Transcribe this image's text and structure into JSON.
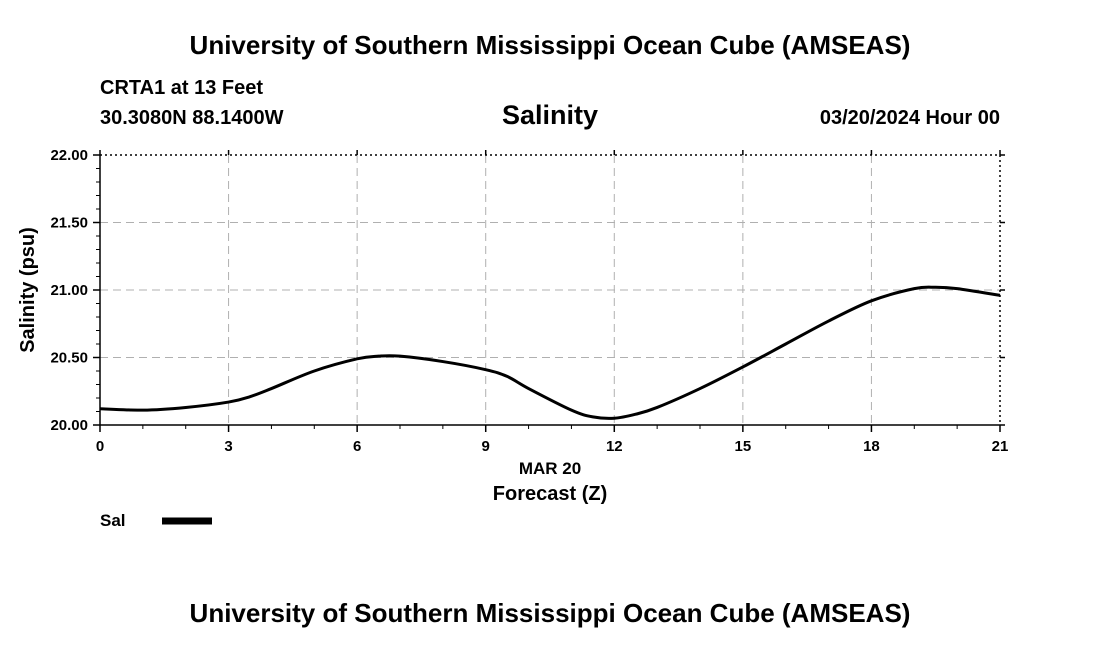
{
  "header": {
    "title": "University of Southern Mississippi Ocean Cube (AMSEAS)",
    "station": "CRTA1 at 13 Feet",
    "coords": "30.3080N  88.1400W",
    "chart_title": "Salinity",
    "date": "03/20/2024 Hour 00"
  },
  "footer": {
    "title": "University of Southern Mississippi Ocean Cube (AMSEAS)"
  },
  "colors": {
    "line": "#000000",
    "grid": "#b0b0b0",
    "background": "#ffffff"
  },
  "chart_data": {
    "type": "line",
    "title": "Salinity",
    "xlabel": "Forecast (Z)",
    "xsublabel": "MAR 20",
    "ylabel": "Salinity (psu)",
    "xlim": [
      0,
      21
    ],
    "ylim": [
      20.0,
      22.0
    ],
    "xticks": [
      0,
      3,
      6,
      9,
      12,
      15,
      18,
      21
    ],
    "yticks": [
      "20.00",
      "20.50",
      "21.00",
      "21.50",
      "22.00"
    ],
    "grid": true,
    "legend": {
      "position": "bottom-left",
      "label": "Sal"
    },
    "series": [
      {
        "name": "Sal",
        "x": [
          0,
          1,
          2,
          3,
          3.5,
          4,
          5,
          6,
          6.5,
          7,
          8,
          9,
          9.5,
          10,
          11,
          11.5,
          12,
          12.5,
          13,
          14,
          15,
          16,
          17,
          18,
          19,
          19.5,
          20,
          21
        ],
        "values": [
          20.12,
          20.11,
          20.13,
          20.17,
          20.21,
          20.27,
          20.4,
          20.49,
          20.51,
          20.51,
          20.47,
          20.41,
          20.36,
          20.27,
          20.11,
          20.06,
          20.05,
          20.08,
          20.13,
          20.27,
          20.43,
          20.6,
          20.77,
          20.92,
          21.01,
          21.02,
          21.01,
          20.96
        ]
      }
    ]
  }
}
